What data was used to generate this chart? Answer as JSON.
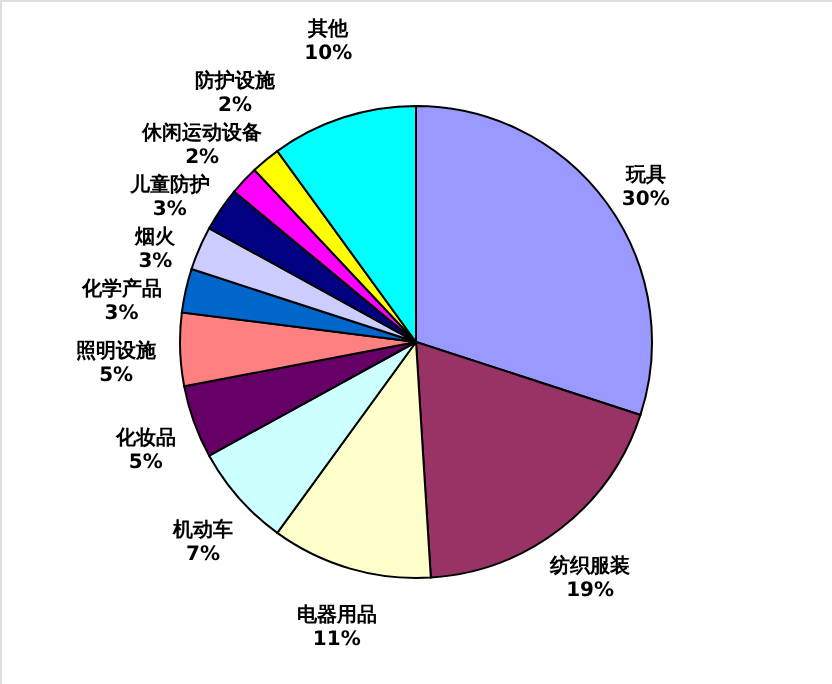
{
  "chart_data": {
    "type": "pie",
    "categories": [
      "玩具",
      "纺织服装",
      "电器用品",
      "机动车",
      "化妆品",
      "照明设施",
      "化学产品",
      "烟火",
      "儿童防护",
      "休闲运动设备",
      "防护设施",
      "其他"
    ],
    "values": [
      30,
      19,
      11,
      7,
      5,
      5,
      3,
      3,
      3,
      2,
      2,
      10
    ],
    "value_labels": [
      "30%",
      "19%",
      "11%",
      "7%",
      "5%",
      "5%",
      "3%",
      "3%",
      "3%",
      "2%",
      "2%",
      "10%"
    ],
    "colors": [
      "#9999ff",
      "#993366",
      "#ffffcc",
      "#ccffff",
      "#660066",
      "#ff8080",
      "#0066cc",
      "#ccccff",
      "#000080",
      "#ff00ff",
      "#ffff00",
      "#00ffff"
    ],
    "legend": false
  }
}
